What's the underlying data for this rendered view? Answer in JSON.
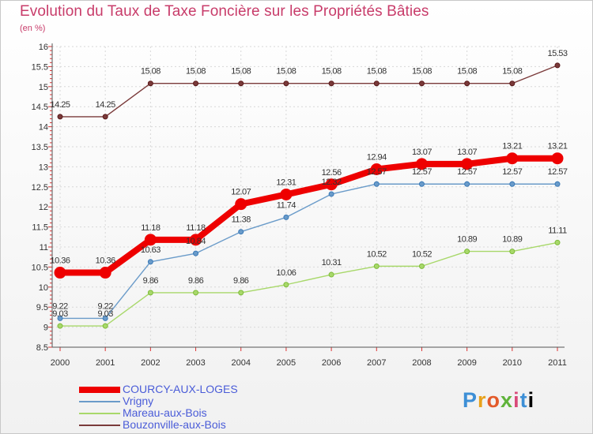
{
  "title": "Evolution du Taux de Taxe Foncière sur les Propriétés Bâties",
  "unit_label": "(en %)",
  "brand": "Proxiti",
  "chart_data": {
    "type": "line",
    "x": [
      "2000",
      "2001",
      "2002",
      "2003",
      "2004",
      "2005",
      "2006",
      "2007",
      "2008",
      "2009",
      "2010",
      "2011"
    ],
    "ylim": [
      8.5,
      16
    ],
    "yticks": [
      "8.5",
      "9",
      "9.5",
      "10",
      "10.5",
      "11",
      "11.5",
      "12",
      "12.5",
      "13",
      "13.5",
      "14",
      "14.5",
      "15",
      "15.5",
      "16"
    ],
    "series": [
      {
        "name": "COURCY-AUX-LOGES",
        "color": "#ee0000",
        "width": 8,
        "marker": 7,
        "values": [
          10.36,
          10.36,
          11.18,
          11.18,
          12.07,
          12.31,
          12.56,
          12.94,
          13.07,
          13.07,
          13.21,
          13.21
        ],
        "labels": [
          "10.36",
          "10.36",
          "11.18",
          "11.18",
          "12.07",
          "12.31",
          "12.56",
          "12.94",
          "13.07",
          "13.07",
          "13.21",
          "13.21"
        ]
      },
      {
        "name": "Vrigny",
        "color": "#6a9bc9",
        "width": 1.4,
        "marker": 3,
        "values": [
          9.22,
          9.22,
          10.63,
          10.84,
          11.38,
          11.74,
          12.32,
          12.57,
          12.57,
          12.57,
          12.57,
          12.57
        ],
        "labels": [
          "9.22",
          "9.22",
          "10.63",
          "10.84",
          "11.38",
          "11.74",
          "12.32",
          "12.57",
          "12.57",
          "12.57",
          "12.57",
          "12.57"
        ]
      },
      {
        "name": "Mareau-aux-Bois",
        "color": "#a8d86a",
        "width": 1.4,
        "marker": 3,
        "values": [
          9.03,
          9.03,
          9.86,
          9.86,
          9.86,
          10.06,
          10.31,
          10.52,
          10.52,
          10.89,
          10.89,
          11.11
        ],
        "labels": [
          "9.03",
          "9.03",
          "9.86",
          "9.86",
          "9.86",
          "10.06",
          "10.31",
          "10.52",
          "10.52",
          "10.89",
          "10.89",
          "11.11"
        ]
      },
      {
        "name": "Bouzonville-aux-Bois",
        "color": "#7a3a3a",
        "width": 1.4,
        "marker": 3,
        "values": [
          14.25,
          14.25,
          15.08,
          15.08,
          15.08,
          15.08,
          15.08,
          15.08,
          15.08,
          15.08,
          15.08,
          15.53
        ],
        "labels": [
          "14.25",
          "14.25",
          "15.08",
          "15.08",
          "15.08",
          "15.08",
          "15.08",
          "15.08",
          "15.08",
          "15.08",
          "15.08",
          "15.53"
        ]
      }
    ],
    "legend_position": "bottom-left"
  }
}
